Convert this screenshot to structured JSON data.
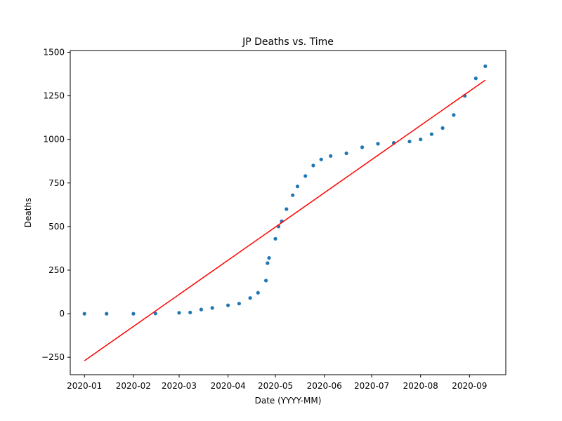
{
  "chart_data": {
    "type": "scatter",
    "title": "JP Deaths vs. Time",
    "xlabel": "Date (YYYY-MM)",
    "ylabel": "Deaths",
    "x_ticks": [
      "2020-01",
      "2020-02",
      "2020-03",
      "2020-04",
      "2020-05",
      "2020-06",
      "2020-07",
      "2020-08",
      "2020-09"
    ],
    "y_ticks": [
      "−250",
      "0",
      "250",
      "500",
      "750",
      "1000",
      "1250",
      "1500"
    ],
    "xlim": [
      "2019-12-23",
      "2020-09-24"
    ],
    "ylim": [
      -350,
      1510
    ],
    "grid": false,
    "colors": {
      "points": "#1f77b4",
      "trend": "#ff0000"
    },
    "series": [
      {
        "kind": "points",
        "points": [
          [
            "2020-01-01",
            0
          ],
          [
            "2020-01-15",
            0
          ],
          [
            "2020-02-01",
            0
          ],
          [
            "2020-02-15",
            1
          ],
          [
            "2020-03-01",
            5
          ],
          [
            "2020-03-08",
            7
          ],
          [
            "2020-03-15",
            24
          ],
          [
            "2020-03-22",
            33
          ],
          [
            "2020-04-01",
            48
          ],
          [
            "2020-04-08",
            58
          ],
          [
            "2020-04-15",
            90
          ],
          [
            "2020-04-20",
            120
          ],
          [
            "2020-04-25",
            190
          ],
          [
            "2020-04-26",
            290
          ],
          [
            "2020-04-27",
            320
          ],
          [
            "2020-05-01",
            430
          ],
          [
            "2020-05-03",
            500
          ],
          [
            "2020-05-05",
            530
          ],
          [
            "2020-05-08",
            600
          ],
          [
            "2020-05-12",
            680
          ],
          [
            "2020-05-15",
            730
          ],
          [
            "2020-05-20",
            790
          ],
          [
            "2020-05-25",
            850
          ],
          [
            "2020-05-30",
            885
          ],
          [
            "2020-06-05",
            905
          ],
          [
            "2020-06-15",
            920
          ],
          [
            "2020-06-25",
            955
          ],
          [
            "2020-07-05",
            975
          ],
          [
            "2020-07-15",
            980
          ],
          [
            "2020-07-25",
            988
          ],
          [
            "2020-08-01",
            1000
          ],
          [
            "2020-08-08",
            1030
          ],
          [
            "2020-08-15",
            1065
          ],
          [
            "2020-08-22",
            1140
          ],
          [
            "2020-08-29",
            1250
          ],
          [
            "2020-09-05",
            1350
          ],
          [
            "2020-09-11",
            1420
          ]
        ]
      },
      {
        "kind": "trend",
        "points": [
          [
            "2020-01-01",
            -270
          ],
          [
            "2020-09-11",
            1340
          ]
        ]
      }
    ]
  }
}
